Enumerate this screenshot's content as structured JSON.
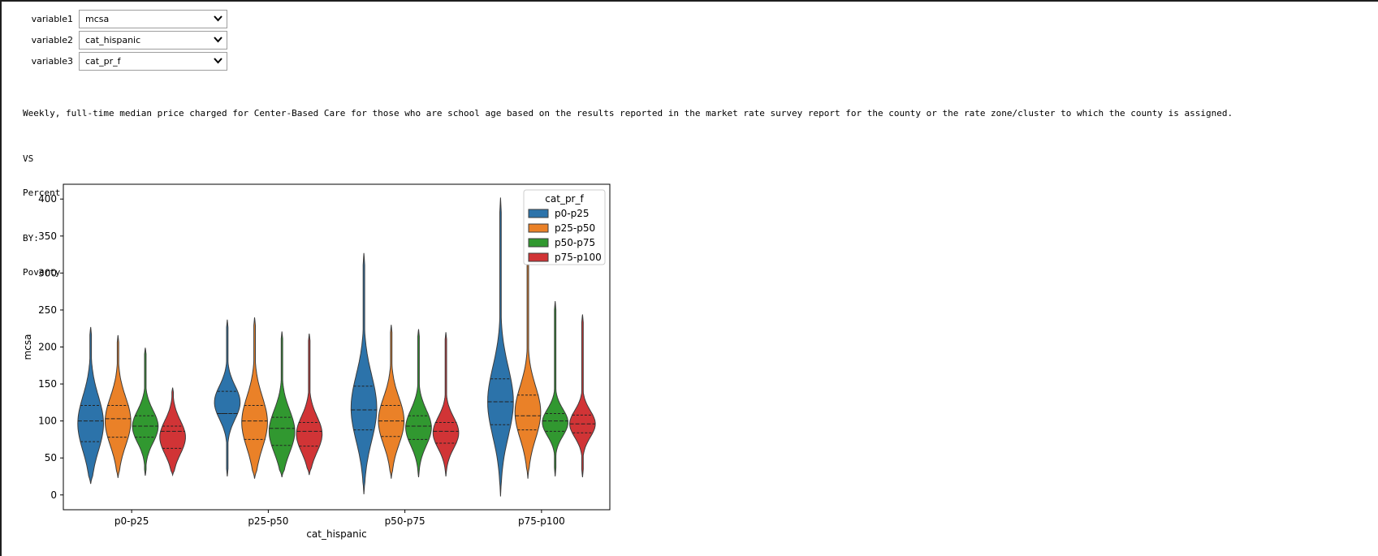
{
  "controls": [
    {
      "label": "variable1",
      "value": "mcsa"
    },
    {
      "label": "variable2",
      "value": "cat_hispanic"
    },
    {
      "label": "variable3",
      "value": "cat_pr_f"
    }
  ],
  "description": {
    "var1": "Weekly, full-time median price charged for Center-Based Care for those who are school age based on the results reported in the market rate survey report for the county or the rate zone/cluster to which the county is assigned.",
    "vs_label": "VS",
    "var2": "Percent of population that identifies as being Hispanic or Latino regardless of race.",
    "by_label": "BY:",
    "var3": "Poverty rate for families."
  },
  "colors": {
    "p0-p25": "#2c73aa",
    "p25-p50": "#ea8128",
    "p50-p75": "#319830",
    "p75-p100": "#d13436"
  },
  "chart_data": {
    "type": "violin",
    "xlabel": "cat_hispanic",
    "ylabel": "mcsa",
    "categories": [
      "p0-p25",
      "p25-p50",
      "p50-p75",
      "p75-p100"
    ],
    "ylim": [
      -20,
      420
    ],
    "yticks": [
      0,
      50,
      100,
      150,
      200,
      250,
      300,
      350,
      400
    ],
    "legend": {
      "title": "cat_pr_f",
      "position": "top-right",
      "entries": [
        "p0-p25",
        "p25-p50",
        "p50-p75",
        "p75-p100"
      ]
    },
    "inner": "quartile",
    "series": [
      {
        "name": "p0-p25",
        "stats": [
          {
            "min": 15,
            "q1": 72,
            "median": 100,
            "q3": 121,
            "max": 227
          },
          {
            "min": 25,
            "q1": 110,
            "median": 110,
            "q3": 140,
            "max": 237
          },
          {
            "min": 1,
            "q1": 88,
            "median": 115,
            "q3": 147,
            "max": 327
          },
          {
            "min": -2,
            "q1": 95,
            "median": 126,
            "q3": 157,
            "max": 402
          }
        ]
      },
      {
        "name": "p25-p50",
        "stats": [
          {
            "min": 23,
            "q1": 78,
            "median": 103,
            "q3": 121,
            "max": 216
          },
          {
            "min": 22,
            "q1": 75,
            "median": 100,
            "q3": 121,
            "max": 240
          },
          {
            "min": 22,
            "q1": 79,
            "median": 100,
            "q3": 121,
            "max": 230
          },
          {
            "min": 22,
            "q1": 88,
            "median": 107,
            "q3": 135,
            "max": 325
          }
        ]
      },
      {
        "name": "p50-p75",
        "stats": [
          {
            "min": 26,
            "q1": 78,
            "median": 93,
            "q3": 107,
            "max": 199
          },
          {
            "min": 24,
            "q1": 67,
            "median": 90,
            "q3": 105,
            "max": 221
          },
          {
            "min": 24,
            "q1": 75,
            "median": 93,
            "q3": 107,
            "max": 224
          },
          {
            "min": 25,
            "q1": 86,
            "median": 100,
            "q3": 110,
            "max": 262
          }
        ]
      },
      {
        "name": "p75-p100",
        "stats": [
          {
            "min": 27,
            "q1": 63,
            "median": 86,
            "q3": 93,
            "max": 145
          },
          {
            "min": 27,
            "q1": 66,
            "median": 86,
            "q3": 98,
            "max": 218
          },
          {
            "min": 25,
            "q1": 70,
            "median": 86,
            "q3": 98,
            "max": 220
          },
          {
            "min": 24,
            "q1": 84,
            "median": 96,
            "q3": 108,
            "max": 244
          }
        ]
      }
    ]
  }
}
